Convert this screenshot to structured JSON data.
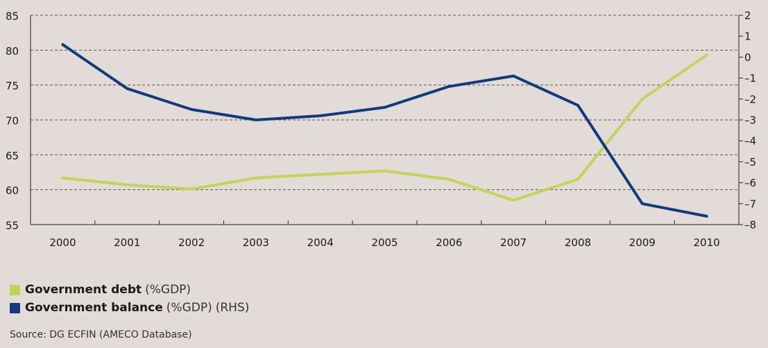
{
  "chart_data": {
    "type": "line",
    "categories": [
      "2000",
      "2001",
      "2002",
      "2003",
      "2004",
      "2005",
      "2006",
      "2007",
      "2008",
      "2009",
      "2010"
    ],
    "y_left": {
      "ylim": [
        55,
        85
      ],
      "ticks": [
        55,
        60,
        65,
        70,
        75,
        80,
        85
      ]
    },
    "y_right": {
      "ylim": [
        -8,
        2
      ],
      "ticks": [
        -8,
        -7,
        -6,
        -5,
        -4,
        -3,
        -2,
        -1,
        0,
        1,
        2
      ]
    },
    "grid": "horizontal-dashed",
    "legend_position": "bottom-left",
    "series": [
      {
        "name": "Government debt",
        "unit": "(%GDP)",
        "axis": "left",
        "color": "#c3d35a",
        "values": [
          61.7,
          60.7,
          60.1,
          61.7,
          62.2,
          62.7,
          61.5,
          58.5,
          61.5,
          73.0,
          79.3
        ]
      },
      {
        "name": "Government balance",
        "unit": "(%GDP)",
        "suffix": "(RHS)",
        "axis": "right",
        "color": "#123a7c",
        "values": [
          0.6,
          -1.5,
          -2.5,
          -3.0,
          -2.8,
          -2.4,
          -1.4,
          -0.9,
          -2.3,
          -7.0,
          -7.6
        ]
      }
    ]
  },
  "source": "Source: DG ECFIN (AMECO Database)"
}
